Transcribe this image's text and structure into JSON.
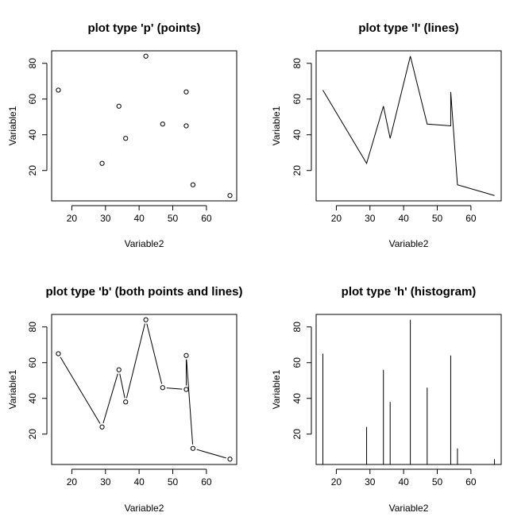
{
  "chart_data": [
    {
      "type": "scatter",
      "plot_type": "p",
      "title": "plot type 'p' (points)",
      "xlabel": "Variable2",
      "ylabel": "Variable1",
      "x": [
        16,
        29,
        34,
        36,
        42,
        47,
        54,
        54,
        56,
        67
      ],
      "y": [
        65,
        24,
        56,
        38,
        84,
        46,
        64,
        45,
        12,
        6
      ],
      "xticks": [
        20,
        30,
        40,
        50,
        60
      ],
      "yticks": [
        20,
        40,
        60,
        80
      ],
      "xlim": [
        14,
        69
      ],
      "ylim": [
        3,
        87
      ],
      "grid": false,
      "legend": "none"
    },
    {
      "type": "line",
      "plot_type": "l",
      "title": "plot type 'l' (lines)",
      "xlabel": "Variable2",
      "ylabel": "Variable1",
      "x": [
        16,
        29,
        34,
        36,
        42,
        47,
        54,
        54,
        56,
        67
      ],
      "y": [
        65,
        24,
        56,
        38,
        84,
        46,
        45,
        64,
        12,
        6
      ],
      "xticks": [
        20,
        30,
        40,
        50,
        60
      ],
      "yticks": [
        20,
        40,
        60,
        80
      ],
      "xlim": [
        14,
        69
      ],
      "ylim": [
        3,
        87
      ],
      "grid": false,
      "legend": "none"
    },
    {
      "type": "line",
      "plot_type": "b",
      "title": "plot type 'b' (both points and lines)",
      "xlabel": "Variable2",
      "ylabel": "Variable1",
      "x": [
        16,
        29,
        34,
        36,
        42,
        47,
        54,
        54,
        56,
        67
      ],
      "y": [
        65,
        24,
        56,
        38,
        84,
        46,
        45,
        64,
        12,
        6
      ],
      "xticks": [
        20,
        30,
        40,
        50,
        60
      ],
      "yticks": [
        20,
        40,
        60,
        80
      ],
      "xlim": [
        14,
        69
      ],
      "ylim": [
        3,
        87
      ],
      "grid": false,
      "legend": "none"
    },
    {
      "type": "bar",
      "plot_type": "h",
      "title": "plot type 'h' (histogram)",
      "xlabel": "Variable2",
      "ylabel": "Variable1",
      "x": [
        16,
        29,
        34,
        36,
        42,
        47,
        54,
        56,
        67
      ],
      "y": [
        65,
        24,
        56,
        38,
        84,
        46,
        64,
        12,
        6
      ],
      "xticks": [
        20,
        30,
        40,
        50,
        60
      ],
      "yticks": [
        20,
        40,
        60,
        80
      ],
      "xlim": [
        14,
        69
      ],
      "ylim": [
        3,
        87
      ],
      "grid": false,
      "legend": "none"
    }
  ]
}
